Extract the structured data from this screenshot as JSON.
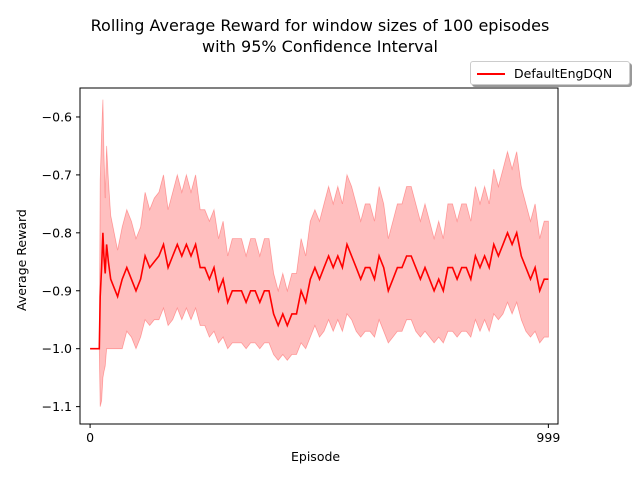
{
  "chart_data": {
    "type": "line",
    "title_line1": "Rolling Average Reward for window sizes of 100 episodes",
    "title_line2": "with 95% Confidence Interval",
    "xlabel": "Episode",
    "ylabel": "Average Reward",
    "xlim": [
      -22,
      1020
    ],
    "ylim": [
      -1.13,
      -0.55
    ],
    "x_ticks": [
      0,
      999
    ],
    "x_tick_labels": [
      "0",
      "999"
    ],
    "y_ticks": [
      -1.1,
      -1.0,
      -0.9,
      -0.8,
      -0.7,
      -0.6
    ],
    "y_tick_labels": [
      "−1.1",
      "−1.0",
      "−0.9",
      "−0.8",
      "−0.7",
      "−0.6"
    ],
    "legend": {
      "placement": "upper-right-outside",
      "entries": [
        "DefaultEngDQN"
      ]
    },
    "grid": false,
    "colors": {
      "line": "#ff0000",
      "band": "#ff0000"
    },
    "series": [
      {
        "name": "DefaultEngDQN",
        "x": [
          0,
          20,
          22,
          25,
          28,
          30,
          33,
          36,
          40,
          45,
          50,
          60,
          70,
          80,
          90,
          100,
          110,
          120,
          130,
          140,
          150,
          160,
          170,
          180,
          190,
          200,
          210,
          220,
          230,
          240,
          250,
          260,
          270,
          280,
          290,
          300,
          310,
          320,
          330,
          340,
          350,
          360,
          370,
          380,
          390,
          400,
          410,
          420,
          430,
          440,
          450,
          460,
          470,
          480,
          490,
          500,
          510,
          520,
          530,
          540,
          550,
          560,
          570,
          580,
          590,
          600,
          610,
          620,
          630,
          640,
          650,
          660,
          670,
          680,
          690,
          700,
          710,
          720,
          730,
          740,
          750,
          760,
          770,
          780,
          790,
          800,
          810,
          820,
          830,
          840,
          850,
          860,
          870,
          880,
          890,
          900,
          910,
          920,
          930,
          940,
          950,
          960,
          970,
          980,
          990,
          999
        ],
        "y": [
          -1.0,
          -1.0,
          -0.91,
          -0.86,
          -0.8,
          -0.84,
          -0.87,
          -0.82,
          -0.85,
          -0.88,
          -0.89,
          -0.91,
          -0.88,
          -0.86,
          -0.88,
          -0.9,
          -0.88,
          -0.84,
          -0.86,
          -0.85,
          -0.84,
          -0.82,
          -0.86,
          -0.84,
          -0.82,
          -0.84,
          -0.82,
          -0.84,
          -0.82,
          -0.86,
          -0.86,
          -0.88,
          -0.86,
          -0.9,
          -0.88,
          -0.92,
          -0.9,
          -0.9,
          -0.9,
          -0.92,
          -0.9,
          -0.9,
          -0.92,
          -0.9,
          -0.9,
          -0.94,
          -0.96,
          -0.94,
          -0.96,
          -0.94,
          -0.94,
          -0.9,
          -0.92,
          -0.88,
          -0.86,
          -0.88,
          -0.86,
          -0.84,
          -0.86,
          -0.84,
          -0.86,
          -0.82,
          -0.84,
          -0.86,
          -0.88,
          -0.86,
          -0.86,
          -0.88,
          -0.84,
          -0.86,
          -0.9,
          -0.88,
          -0.86,
          -0.86,
          -0.84,
          -0.84,
          -0.86,
          -0.88,
          -0.86,
          -0.88,
          -0.9,
          -0.88,
          -0.9,
          -0.86,
          -0.86,
          -0.88,
          -0.86,
          -0.86,
          -0.88,
          -0.84,
          -0.86,
          -0.84,
          -0.86,
          -0.82,
          -0.84,
          -0.82,
          -0.8,
          -0.82,
          -0.8,
          -0.84,
          -0.86,
          -0.88,
          -0.86,
          -0.9,
          -0.88,
          -0.88
        ],
        "ci_lower": [
          -1.0,
          -1.0,
          -1.1,
          -1.09,
          -1.05,
          -1.04,
          -1.03,
          -1.0,
          -1.0,
          -1.0,
          -1.0,
          -1.0,
          -1.0,
          -0.97,
          -0.98,
          -1.0,
          -0.98,
          -0.95,
          -0.96,
          -0.95,
          -0.95,
          -0.93,
          -0.96,
          -0.95,
          -0.93,
          -0.95,
          -0.93,
          -0.95,
          -0.93,
          -0.96,
          -0.96,
          -0.98,
          -0.97,
          -0.99,
          -0.98,
          -1.0,
          -0.99,
          -0.99,
          -0.99,
          -1.0,
          -0.99,
          -0.99,
          -1.0,
          -0.99,
          -0.99,
          -1.01,
          -1.02,
          -1.01,
          -1.02,
          -1.01,
          -1.01,
          -0.99,
          -1.0,
          -0.98,
          -0.96,
          -0.98,
          -0.97,
          -0.95,
          -0.97,
          -0.95,
          -0.97,
          -0.94,
          -0.95,
          -0.97,
          -0.98,
          -0.97,
          -0.97,
          -0.98,
          -0.95,
          -0.97,
          -0.99,
          -0.98,
          -0.97,
          -0.97,
          -0.95,
          -0.95,
          -0.97,
          -0.98,
          -0.97,
          -0.98,
          -0.99,
          -0.98,
          -0.99,
          -0.97,
          -0.97,
          -0.98,
          -0.97,
          -0.97,
          -0.98,
          -0.95,
          -0.97,
          -0.95,
          -0.97,
          -0.94,
          -0.95,
          -0.94,
          -0.92,
          -0.94,
          -0.92,
          -0.95,
          -0.97,
          -0.98,
          -0.97,
          -0.99,
          -0.98,
          -0.98
        ],
        "ci_upper": [
          -1.0,
          -1.0,
          -0.71,
          -0.63,
          -0.57,
          -0.66,
          -0.74,
          -0.65,
          -0.71,
          -0.77,
          -0.79,
          -0.83,
          -0.79,
          -0.76,
          -0.78,
          -0.81,
          -0.79,
          -0.73,
          -0.76,
          -0.74,
          -0.73,
          -0.7,
          -0.76,
          -0.73,
          -0.7,
          -0.73,
          -0.7,
          -0.73,
          -0.7,
          -0.76,
          -0.76,
          -0.78,
          -0.76,
          -0.81,
          -0.78,
          -0.84,
          -0.81,
          -0.81,
          -0.81,
          -0.84,
          -0.81,
          -0.81,
          -0.84,
          -0.81,
          -0.81,
          -0.87,
          -0.9,
          -0.87,
          -0.9,
          -0.87,
          -0.87,
          -0.81,
          -0.84,
          -0.78,
          -0.76,
          -0.78,
          -0.75,
          -0.72,
          -0.75,
          -0.72,
          -0.75,
          -0.7,
          -0.72,
          -0.75,
          -0.78,
          -0.75,
          -0.75,
          -0.78,
          -0.72,
          -0.75,
          -0.81,
          -0.78,
          -0.75,
          -0.75,
          -0.72,
          -0.72,
          -0.75,
          -0.78,
          -0.75,
          -0.78,
          -0.81,
          -0.78,
          -0.81,
          -0.75,
          -0.75,
          -0.78,
          -0.75,
          -0.75,
          -0.78,
          -0.72,
          -0.75,
          -0.72,
          -0.75,
          -0.69,
          -0.72,
          -0.69,
          -0.66,
          -0.69,
          -0.66,
          -0.72,
          -0.75,
          -0.78,
          -0.75,
          -0.81,
          -0.78,
          -0.78
        ]
      }
    ]
  }
}
